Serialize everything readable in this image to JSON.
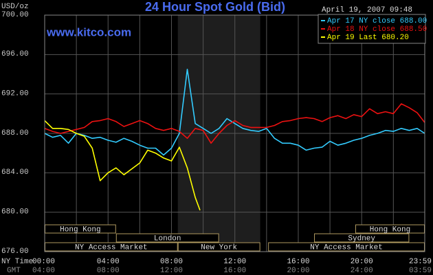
{
  "chart_data": {
    "type": "line",
    "title": "24 Hour Spot Gold (Bid)",
    "timestamp": "April 19, 2007 09:48",
    "website": "www.kitco.com",
    "ylabel": "USD/oz",
    "xlabel": "NY Time",
    "x2label": "GMT",
    "xlim": [
      0,
      23.98
    ],
    "ylim": [
      676,
      700
    ],
    "yticks": [
      {
        "value": 676,
        "label": "676.00"
      },
      {
        "value": 680,
        "label": "680.00"
      },
      {
        "value": 684,
        "label": "684.00"
      },
      {
        "value": 688,
        "label": "688.00"
      },
      {
        "value": 692,
        "label": "692.00"
      },
      {
        "value": 696,
        "label": "696.00"
      },
      {
        "value": 700,
        "label": "700.00"
      }
    ],
    "xticks": [
      {
        "value": 0,
        "label": "00:00"
      },
      {
        "value": 4,
        "label": "04:00"
      },
      {
        "value": 8,
        "label": "08:00"
      },
      {
        "value": 12,
        "label": "12:00"
      },
      {
        "value": 16,
        "label": "16:00"
      },
      {
        "value": 20,
        "label": "20:00"
      },
      {
        "value": 23.98,
        "label": "23:59"
      }
    ],
    "x2ticklabels": [
      "04:00",
      "08:00",
      "12:00",
      "16:00",
      "20:00",
      "24:00",
      "03:59"
    ],
    "xgrid": [
      2,
      6,
      10,
      14,
      18,
      22
    ],
    "grid": true,
    "sessions": [
      {
        "label": "Hong Kong",
        "start": 0,
        "end": 4.5
      },
      {
        "label": "London",
        "start": 4.5,
        "end": 11
      },
      {
        "label": "NY Access Market",
        "start": 0,
        "end": 8.4
      },
      {
        "label": "New York",
        "start": 8.4,
        "end": 13.6
      },
      {
        "label": "NY Access Market",
        "start": 14.1,
        "end": 23.98
      },
      {
        "label": "Sydney",
        "start": 17,
        "end": 23
      },
      {
        "label": "Hong Kong",
        "start": 19.6,
        "end": 23.98
      }
    ],
    "series": [
      {
        "name": "Apr 17 NY close 688.00",
        "color": "#33ccff",
        "x": [
          0,
          0.5,
          1,
          1.5,
          2,
          2.5,
          3,
          3.5,
          4,
          4.5,
          5,
          5.5,
          6,
          6.5,
          7,
          7.5,
          8,
          8.5,
          9,
          9.5,
          10,
          10.5,
          11,
          11.5,
          12,
          12.5,
          13,
          13.5,
          14,
          14.5,
          15,
          15.5,
          16,
          16.5,
          17,
          17.5,
          18,
          18.5,
          19,
          19.5,
          20,
          20.5,
          21,
          21.5,
          22,
          22.5,
          23,
          23.5,
          23.98
        ],
        "values": [
          688,
          687.6,
          687.8,
          687,
          688,
          687.8,
          687.5,
          687.6,
          687.3,
          687.1,
          687.5,
          687.2,
          686.8,
          686.5,
          686.5,
          685.8,
          686.5,
          688,
          694.5,
          689,
          688.5,
          688,
          688.5,
          689.5,
          689,
          688.5,
          688.3,
          688.2,
          688.5,
          687.5,
          687,
          687,
          686.8,
          686.3,
          686.5,
          686.6,
          687.2,
          686.8,
          687,
          687.3,
          687.5,
          687.8,
          688,
          688.3,
          688.2,
          688.5,
          688.3,
          688.5,
          688
        ]
      },
      {
        "name": "Apr 18 NY close 688.50",
        "color": "#ee1111",
        "x": [
          0,
          0.5,
          1,
          1.5,
          2,
          2.5,
          3,
          3.5,
          4,
          4.5,
          5,
          5.5,
          6,
          6.5,
          7,
          7.5,
          8,
          8.5,
          9,
          9.5,
          10,
          10.5,
          11,
          11.5,
          12,
          12.5,
          13,
          13.5,
          14,
          14.5,
          15,
          15.5,
          16,
          16.5,
          17,
          17.5,
          18,
          18.5,
          19,
          19.5,
          20,
          20.5,
          21,
          21.5,
          22,
          22.5,
          23,
          23.5,
          23.98
        ],
        "values": [
          688.5,
          688.2,
          688,
          688.2,
          688.4,
          688.6,
          689.2,
          689.3,
          689.5,
          689.2,
          688.7,
          689,
          689.3,
          689,
          688.5,
          688.3,
          688.5,
          688.2,
          687.5,
          688.5,
          688.3,
          687,
          688,
          688.8,
          689.3,
          688.8,
          688.6,
          688.6,
          688.6,
          688.8,
          689.2,
          689.3,
          689.5,
          689.6,
          689.5,
          689.2,
          689.6,
          689.8,
          689.5,
          689.9,
          689.7,
          690.5,
          690,
          690.2,
          690,
          691,
          690.6,
          690.1,
          689.1
        ]
      },
      {
        "name": "Apr 19 Last 680.20",
        "color": "#ffff00",
        "x": [
          0,
          0.5,
          1,
          1.5,
          2,
          2.5,
          3,
          3.5,
          4,
          4.5,
          5,
          5.5,
          6,
          6.5,
          7,
          7.5,
          8,
          8.5,
          9,
          9.5,
          9.8
        ],
        "values": [
          689.3,
          688.5,
          688.5,
          688.4,
          688,
          687.7,
          686.5,
          683.2,
          684,
          684.5,
          683.8,
          684.4,
          685,
          686.3,
          686,
          685.5,
          685.2,
          686.6,
          684.5,
          681.5,
          680.2
        ]
      }
    ]
  }
}
